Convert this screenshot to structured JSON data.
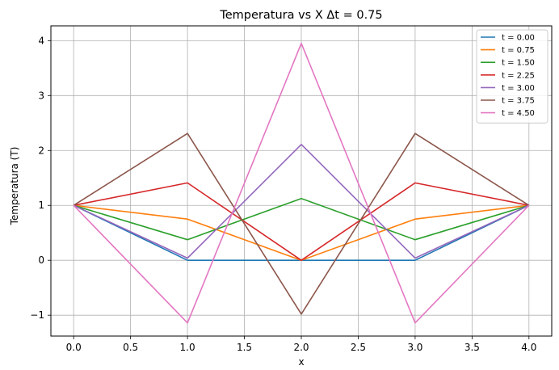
{
  "chart_data": {
    "type": "line",
    "title": "Temperatura vs X Δt = 0.75",
    "xlabel": "x",
    "ylabel": "Temperatura (T)",
    "xlim": [
      -0.2,
      4.2
    ],
    "ylim": [
      -1.38,
      4.27
    ],
    "xticks": [
      0.0,
      0.5,
      1.0,
      1.5,
      2.0,
      2.5,
      3.0,
      3.5,
      4.0
    ],
    "xtick_labels": [
      "0.0",
      "0.5",
      "1.0",
      "1.5",
      "2.0",
      "2.5",
      "3.0",
      "3.5",
      "4.0"
    ],
    "yticks": [
      -1,
      0,
      1,
      2,
      3,
      4
    ],
    "ytick_labels": [
      "−1",
      "0",
      "1",
      "2",
      "3",
      "4"
    ],
    "grid": true,
    "legend_position": "top-right",
    "x": [
      0,
      1,
      2,
      3,
      4
    ],
    "series": [
      {
        "name": "t = 0.00",
        "color": "#1f77b4",
        "values": [
          1,
          0,
          0,
          0,
          1
        ]
      },
      {
        "name": "t = 0.75",
        "color": "#ff7f0e",
        "values": [
          1,
          0.75,
          0,
          0.75,
          1
        ]
      },
      {
        "name": "t = 1.50",
        "color": "#2ca02c",
        "values": [
          1,
          0.375,
          1.125,
          0.375,
          1
        ]
      },
      {
        "name": "t = 2.25",
        "color": "#d62728",
        "values": [
          1,
          1.41,
          0,
          1.41,
          1
        ]
      },
      {
        "name": "t = 3.00",
        "color": "#9467bd",
        "values": [
          1,
          0.04,
          2.11,
          0.04,
          1
        ]
      },
      {
        "name": "t = 3.75",
        "color": "#8c564b",
        "values": [
          1,
          2.31,
          -0.98,
          2.31,
          1
        ]
      },
      {
        "name": "t = 4.50",
        "color": "#e377c2",
        "values": [
          1,
          -1.14,
          3.95,
          -1.14,
          1
        ]
      }
    ]
  }
}
